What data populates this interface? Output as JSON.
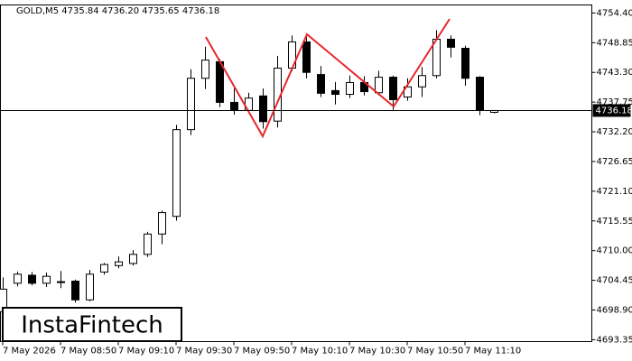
{
  "chart_data": {
    "type": "candlestick",
    "header": "GOLD,M5  4735.84 4736.20 4735.65 4736.18",
    "watermark": "InstaFintech",
    "categories": [
      "7 May 2026",
      null,
      null,
      null,
      "7 May 08:50",
      null,
      null,
      null,
      "7 May 09:10",
      null,
      null,
      null,
      "7 May 09:30",
      null,
      null,
      null,
      "7 May 09:50",
      null,
      null,
      null,
      "7 May 10:10",
      null,
      null,
      null,
      "7 May 10:30",
      null,
      null,
      null,
      "7 May 10:50",
      null,
      null,
      null,
      "7 May 11:10",
      null,
      null
    ],
    "open": [
      4698.6,
      4703.9,
      4705.4,
      4703.9,
      4704.1,
      4704.3,
      4700.8,
      4706.0,
      4707.2,
      4707.6,
      4709.3,
      4713.1,
      4716.4,
      4732.6,
      4742.2,
      4745.3,
      4737.7,
      4736.2,
      4738.9,
      4734.2,
      4744.1,
      4749.0,
      4742.9,
      4739.9,
      4739.2,
      4741.4,
      4739.5,
      4742.4,
      4738.7,
      4740.6,
      4742.7,
      4749.5,
      4747.8,
      4742.4,
      4735.84
    ],
    "high": [
      4705.0,
      4706.1,
      4706.0,
      4705.9,
      4706.2,
      4704.6,
      4706.4,
      4707.7,
      4708.9,
      4710.1,
      4713.5,
      4717.5,
      4733.5,
      4743.9,
      4748.1,
      4745.8,
      4740.3,
      4739.5,
      4740.3,
      4746.4,
      4750.2,
      4750.5,
      4744.5,
      4741.5,
      4742.7,
      4742.6,
      4743.6,
      4742.7,
      4742.2,
      4744.3,
      4751.2,
      4750.2,
      4748.3,
      4742.6,
      4736.2
    ],
    "low": [
      4698.0,
      4703.3,
      4703.5,
      4703.2,
      4703.0,
      4700.3,
      4700.5,
      4705.5,
      4706.7,
      4707.2,
      4708.8,
      4711.2,
      4715.6,
      4731.6,
      4740.2,
      4736.8,
      4735.4,
      4735.7,
      4732.8,
      4733.0,
      4743.5,
      4742.2,
      4738.7,
      4737.3,
      4738.5,
      4739.0,
      4739.0,
      4736.3,
      4738.0,
      4738.7,
      4742.2,
      4746.1,
      4740.8,
      4735.3,
      4735.65
    ],
    "close": [
      4702.8,
      4705.6,
      4703.9,
      4705.2,
      4704.2,
      4700.8,
      4705.6,
      4707.4,
      4707.9,
      4709.3,
      4713.1,
      4717.1,
      4732.6,
      4742.2,
      4745.6,
      4737.7,
      4736.2,
      4738.5,
      4734.1,
      4744.1,
      4749.0,
      4743.3,
      4739.4,
      4739.2,
      4741.4,
      4739.7,
      4742.4,
      4738.2,
      4740.6,
      4742.7,
      4749.5,
      4748.0,
      4742.2,
      4736.2,
      4736.18
    ],
    "current_price": 4736.18,
    "ylim": [
      4693.0,
      4755.9
    ],
    "yticks": [
      {
        "value": 4754.4,
        "label": "4754.40"
      },
      {
        "value": 4748.85,
        "label": "4748.85"
      },
      {
        "value": 4743.3,
        "label": "4743.30"
      },
      {
        "value": 4737.75,
        "label": "4737.75"
      },
      {
        "value": 4732.2,
        "label": "4732.20"
      },
      {
        "value": 4726.65,
        "label": "4726.65"
      },
      {
        "value": 4721.1,
        "label": "4721.10"
      },
      {
        "value": 4715.55,
        "label": "4715.55"
      },
      {
        "value": 4710.0,
        "label": "4710.00"
      },
      {
        "value": 4704.45,
        "label": "4704.45"
      },
      {
        "value": 4698.9,
        "label": "4698.90"
      },
      {
        "value": 4693.35,
        "label": "4693.35"
      }
    ],
    "up_color": "#ffffff",
    "down_color": "#000000"
  }
}
